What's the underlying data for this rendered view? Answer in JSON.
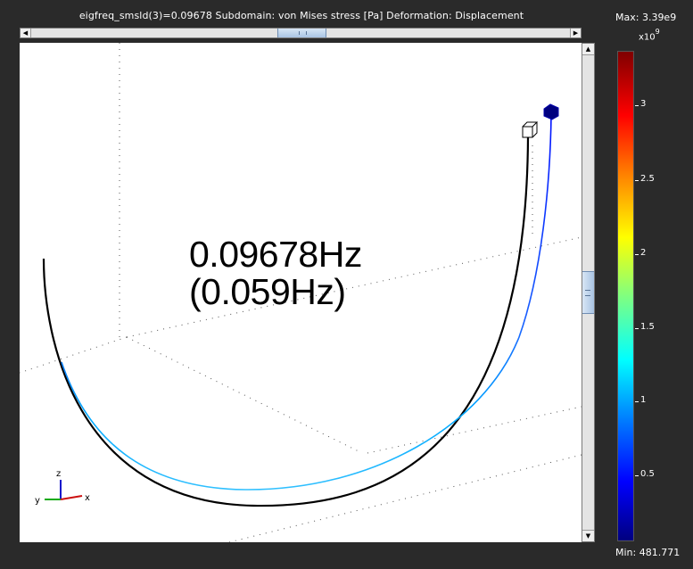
{
  "plot": {
    "title": "eigfreq_smsld(3)=0.09678   Subdomain: von Mises stress [Pa]   Deformation: Displacement",
    "annotation_line1": "0.09678Hz",
    "annotation_line2": "(0.059Hz)"
  },
  "axes_triad": {
    "z_label": "z",
    "y_label": "y",
    "x_label": "x"
  },
  "legend": {
    "max_label": "Max: 3.39e9",
    "multiplier": "x10",
    "multiplier_exp": "9",
    "min_label": "Min: 481.771",
    "ticks": [
      "3",
      "2.5",
      "2",
      "1.5",
      "1",
      "0.5"
    ],
    "colormap": [
      "#00007f",
      "#0000ff",
      "#0080ff",
      "#00ffff",
      "#80ff80",
      "#ffff00",
      "#ff8000",
      "#ff0000",
      "#7f0000"
    ]
  },
  "scrollbars": {
    "left_arrow": "◀",
    "right_arrow": "▶",
    "up_arrow": "▲",
    "down_arrow": "▼"
  },
  "colors": {
    "background": "#2a2a2a",
    "canvas": "#ffffff",
    "undeformed": "#000000",
    "deformed_low": "#0000ff",
    "deformed_mid": "#00b0ff"
  }
}
